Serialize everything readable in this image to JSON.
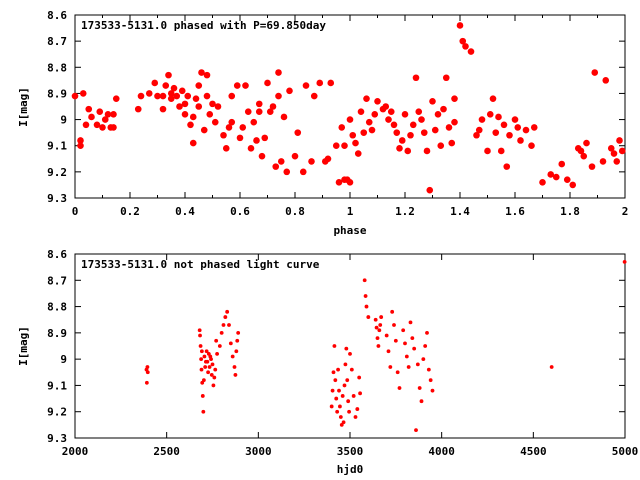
{
  "chart_data": [
    {
      "type": "scatter",
      "title": "173533-5131.0 phased with P=69.850day",
      "xlabel": "phase",
      "ylabel": "I[mag]",
      "xlim": [
        0,
        2
      ],
      "ylim": [
        9.3,
        8.6
      ],
      "y_inverted": true,
      "x_ticks": [
        "0",
        "0.2",
        "0.4",
        "0.6",
        "0.8",
        "1",
        "1.2",
        "1.4",
        "1.6",
        "1.8",
        "2"
      ],
      "y_ticks": [
        "8.6",
        "8.7",
        "8.8",
        "8.9",
        "9",
        "9.1",
        "9.2",
        "9.3"
      ],
      "marker": "filled-circle",
      "color": "#ff0000",
      "points": [
        [
          0.0,
          8.91
        ],
        [
          0.02,
          9.08
        ],
        [
          0.02,
          9.1
        ],
        [
          0.03,
          8.9
        ],
        [
          0.04,
          9.02
        ],
        [
          0.05,
          8.96
        ],
        [
          0.06,
          8.99
        ],
        [
          0.08,
          9.02
        ],
        [
          0.09,
          8.97
        ],
        [
          0.1,
          9.03
        ],
        [
          0.11,
          9.0
        ],
        [
          0.12,
          8.98
        ],
        [
          0.13,
          9.03
        ],
        [
          0.14,
          8.98
        ],
        [
          0.15,
          8.92
        ],
        [
          0.14,
          9.03
        ],
        [
          0.23,
          8.96
        ],
        [
          0.24,
          8.91
        ],
        [
          0.27,
          8.9
        ],
        [
          0.29,
          8.86
        ],
        [
          0.3,
          8.91
        ],
        [
          0.32,
          8.91
        ],
        [
          0.32,
          8.96
        ],
        [
          0.33,
          8.87
        ],
        [
          0.34,
          8.83
        ],
        [
          0.35,
          8.9
        ],
        [
          0.35,
          8.92
        ],
        [
          0.36,
          8.88
        ],
        [
          0.37,
          8.91
        ],
        [
          0.38,
          8.95
        ],
        [
          0.39,
          8.89
        ],
        [
          0.4,
          8.94
        ],
        [
          0.4,
          8.98
        ],
        [
          0.41,
          8.91
        ],
        [
          0.42,
          9.02
        ],
        [
          0.43,
          8.99
        ],
        [
          0.43,
          9.09
        ],
        [
          0.44,
          8.92
        ],
        [
          0.45,
          8.87
        ],
        [
          0.45,
          8.95
        ],
        [
          0.46,
          8.82
        ],
        [
          0.47,
          9.04
        ],
        [
          0.48,
          8.91
        ],
        [
          0.48,
          8.83
        ],
        [
          0.49,
          8.98
        ],
        [
          0.5,
          8.94
        ],
        [
          0.51,
          9.01
        ],
        [
          0.52,
          8.95
        ],
        [
          0.54,
          9.06
        ],
        [
          0.55,
          9.11
        ],
        [
          0.56,
          9.03
        ],
        [
          0.57,
          8.91
        ],
        [
          0.57,
          9.01
        ],
        [
          0.59,
          8.87
        ],
        [
          0.6,
          9.07
        ],
        [
          0.61,
          9.03
        ],
        [
          0.62,
          8.87
        ],
        [
          0.63,
          8.97
        ],
        [
          0.64,
          9.11
        ],
        [
          0.65,
          9.01
        ],
        [
          0.66,
          9.08
        ],
        [
          0.67,
          8.94
        ],
        [
          0.67,
          8.97
        ],
        [
          0.68,
          9.14
        ],
        [
          0.69,
          9.07
        ],
        [
          0.7,
          8.86
        ],
        [
          0.71,
          8.97
        ],
        [
          0.72,
          8.95
        ],
        [
          0.73,
          9.18
        ],
        [
          0.74,
          8.91
        ],
        [
          0.75,
          9.16
        ],
        [
          0.74,
          8.82
        ],
        [
          0.76,
          8.99
        ],
        [
          0.77,
          9.2
        ],
        [
          0.78,
          8.89
        ],
        [
          0.8,
          9.14
        ],
        [
          0.81,
          9.05
        ],
        [
          0.83,
          9.2
        ],
        [
          0.84,
          8.87
        ],
        [
          0.86,
          9.16
        ],
        [
          0.87,
          8.91
        ],
        [
          0.89,
          8.86
        ],
        [
          0.91,
          9.16
        ],
        [
          0.92,
          9.15
        ],
        [
          0.93,
          8.86
        ],
        [
          0.95,
          9.1
        ],
        [
          0.96,
          9.24
        ],
        [
          0.98,
          9.23
        ],
        [
          0.99,
          9.23
        ],
        [
          1.0,
          9.24
        ],
        [
          0.97,
          9.03
        ],
        [
          0.98,
          9.1
        ],
        [
          1.0,
          9.0
        ],
        [
          1.01,
          9.06
        ],
        [
          1.02,
          9.09
        ],
        [
          1.03,
          9.13
        ],
        [
          1.04,
          8.97
        ],
        [
          1.05,
          9.05
        ],
        [
          1.06,
          8.92
        ],
        [
          1.07,
          9.01
        ],
        [
          1.08,
          9.04
        ],
        [
          1.09,
          8.98
        ],
        [
          1.1,
          8.93
        ],
        [
          1.12,
          8.96
        ],
        [
          1.13,
          8.95
        ],
        [
          1.14,
          9.0
        ],
        [
          1.15,
          8.97
        ],
        [
          1.16,
          9.02
        ],
        [
          1.17,
          9.05
        ],
        [
          1.18,
          9.11
        ],
        [
          1.19,
          9.08
        ],
        [
          1.2,
          8.98
        ],
        [
          1.21,
          9.12
        ],
        [
          1.22,
          9.06
        ],
        [
          1.23,
          9.02
        ],
        [
          1.24,
          8.84
        ],
        [
          1.25,
          8.97
        ],
        [
          1.26,
          9.0
        ],
        [
          1.27,
          9.05
        ],
        [
          1.28,
          9.12
        ],
        [
          1.29,
          9.27
        ],
        [
          1.3,
          8.93
        ],
        [
          1.31,
          9.04
        ],
        [
          1.32,
          8.98
        ],
        [
          1.33,
          9.1
        ],
        [
          1.34,
          8.96
        ],
        [
          1.35,
          8.84
        ],
        [
          1.36,
          9.03
        ],
        [
          1.37,
          9.09
        ],
        [
          1.38,
          8.92
        ],
        [
          1.38,
          9.01
        ],
        [
          1.4,
          8.64
        ],
        [
          1.41,
          8.7
        ],
        [
          1.42,
          8.72
        ],
        [
          1.44,
          8.74
        ],
        [
          1.46,
          9.06
        ],
        [
          1.47,
          9.04
        ],
        [
          1.48,
          9.0
        ],
        [
          1.5,
          9.12
        ],
        [
          1.51,
          8.98
        ],
        [
          1.52,
          8.92
        ],
        [
          1.53,
          9.05
        ],
        [
          1.54,
          8.99
        ],
        [
          1.55,
          9.12
        ],
        [
          1.56,
          9.02
        ],
        [
          1.57,
          9.18
        ],
        [
          1.58,
          9.06
        ],
        [
          1.6,
          9.0
        ],
        [
          1.61,
          9.03
        ],
        [
          1.62,
          9.08
        ],
        [
          1.64,
          9.04
        ],
        [
          1.66,
          9.1
        ],
        [
          1.67,
          9.03
        ],
        [
          1.7,
          9.24
        ],
        [
          1.73,
          9.21
        ],
        [
          1.75,
          9.22
        ],
        [
          1.77,
          9.17
        ],
        [
          1.79,
          9.23
        ],
        [
          1.81,
          9.25
        ],
        [
          1.83,
          9.11
        ],
        [
          1.84,
          9.12
        ],
        [
          1.85,
          9.14
        ],
        [
          1.86,
          9.09
        ],
        [
          1.88,
          9.18
        ],
        [
          1.89,
          8.82
        ],
        [
          1.92,
          9.16
        ],
        [
          1.93,
          8.85
        ],
        [
          1.95,
          9.11
        ],
        [
          1.96,
          9.13
        ],
        [
          1.97,
          9.16
        ],
        [
          1.98,
          9.08
        ],
        [
          1.99,
          9.12
        ]
      ]
    },
    {
      "type": "scatter",
      "title": "173533-5131.0 not phased light curve",
      "xlabel": "hjd0",
      "ylabel": "I[mag]",
      "xlim": [
        2000,
        5000
      ],
      "ylim": [
        9.3,
        8.6
      ],
      "y_inverted": true,
      "x_ticks": [
        "2000",
        "2500",
        "3000",
        "3500",
        "4000",
        "4500",
        "5000"
      ],
      "y_ticks": [
        "8.6",
        "8.7",
        "8.8",
        "8.9",
        "9",
        "9.1",
        "9.2",
        "9.3"
      ],
      "marker": "small-filled-circle",
      "color": "#ff0000",
      "points": [
        [
          2390,
          9.04
        ],
        [
          2392,
          9.09
        ],
        [
          2395,
          9.03
        ],
        [
          2397,
          9.05
        ],
        [
          2680,
          8.89
        ],
        [
          2682,
          8.91
        ],
        [
          2685,
          8.95
        ],
        [
          2688,
          9.0
        ],
        [
          2690,
          9.04
        ],
        [
          2692,
          8.97
        ],
        [
          2694,
          9.09
        ],
        [
          2697,
          9.14
        ],
        [
          2700,
          9.2
        ],
        [
          2703,
          9.08
        ],
        [
          2706,
          8.99
        ],
        [
          2710,
          9.03
        ],
        [
          2714,
          9.01
        ],
        [
          2718,
          8.97
        ],
        [
          2722,
          9.01
        ],
        [
          2726,
          9.05
        ],
        [
          2730,
          8.98
        ],
        [
          2734,
          9.03
        ],
        [
          2738,
          8.99
        ],
        [
          2742,
          9.0
        ],
        [
          2746,
          9.06
        ],
        [
          2750,
          9.02
        ],
        [
          2755,
          9.1
        ],
        [
          2760,
          9.07
        ],
        [
          2765,
          9.04
        ],
        [
          2770,
          8.93
        ],
        [
          2775,
          8.98
        ],
        [
          2790,
          8.95
        ],
        [
          2800,
          8.9
        ],
        [
          2810,
          8.87
        ],
        [
          2820,
          8.84
        ],
        [
          2830,
          8.82
        ],
        [
          2840,
          8.87
        ],
        [
          2850,
          8.94
        ],
        [
          2860,
          8.99
        ],
        [
          2870,
          9.03
        ],
        [
          2875,
          9.06
        ],
        [
          2880,
          8.97
        ],
        [
          2885,
          8.93
        ],
        [
          2890,
          8.9
        ],
        [
          3400,
          9.18
        ],
        [
          3405,
          9.12
        ],
        [
          3410,
          9.05
        ],
        [
          3415,
          8.95
        ],
        [
          3420,
          9.08
        ],
        [
          3425,
          9.15
        ],
        [
          3430,
          9.2
        ],
        [
          3435,
          9.04
        ],
        [
          3440,
          9.12
        ],
        [
          3445,
          9.18
        ],
        [
          3450,
          9.22
        ],
        [
          3455,
          9.25
        ],
        [
          3460,
          9.14
        ],
        [
          3465,
          9.24
        ],
        [
          3470,
          9.1
        ],
        [
          3475,
          9.02
        ],
        [
          3480,
          8.96
        ],
        [
          3485,
          9.08
        ],
        [
          3490,
          9.16
        ],
        [
          3495,
          9.2
        ],
        [
          3500,
          8.98
        ],
        [
          3510,
          9.04
        ],
        [
          3520,
          9.14
        ],
        [
          3530,
          9.22
        ],
        [
          3540,
          9.19
        ],
        [
          3550,
          9.07
        ],
        [
          3555,
          9.13
        ],
        [
          3580,
          8.7
        ],
        [
          3585,
          8.76
        ],
        [
          3590,
          8.8
        ],
        [
          3600,
          8.84
        ],
        [
          3640,
          8.85
        ],
        [
          3645,
          8.88
        ],
        [
          3650,
          8.92
        ],
        [
          3655,
          8.95
        ],
        [
          3660,
          8.89
        ],
        [
          3665,
          8.87
        ],
        [
          3670,
          8.84
        ],
        [
          3700,
          8.91
        ],
        [
          3710,
          8.97
        ],
        [
          3720,
          9.03
        ],
        [
          3730,
          8.82
        ],
        [
          3740,
          8.87
        ],
        [
          3750,
          8.93
        ],
        [
          3760,
          9.05
        ],
        [
          3770,
          9.11
        ],
        [
          3790,
          8.89
        ],
        [
          3800,
          8.94
        ],
        [
          3810,
          8.99
        ],
        [
          3820,
          9.03
        ],
        [
          3830,
          8.86
        ],
        [
          3840,
          8.92
        ],
        [
          3850,
          8.96
        ],
        [
          3860,
          9.27
        ],
        [
          3870,
          9.02
        ],
        [
          3880,
          9.11
        ],
        [
          3890,
          9.16
        ],
        [
          3900,
          9.0
        ],
        [
          3910,
          8.95
        ],
        [
          3920,
          8.9
        ],
        [
          3930,
          9.04
        ],
        [
          3940,
          9.08
        ],
        [
          3950,
          9.12
        ],
        [
          4600,
          9.03
        ],
        [
          4998,
          8.63
        ]
      ]
    }
  ]
}
